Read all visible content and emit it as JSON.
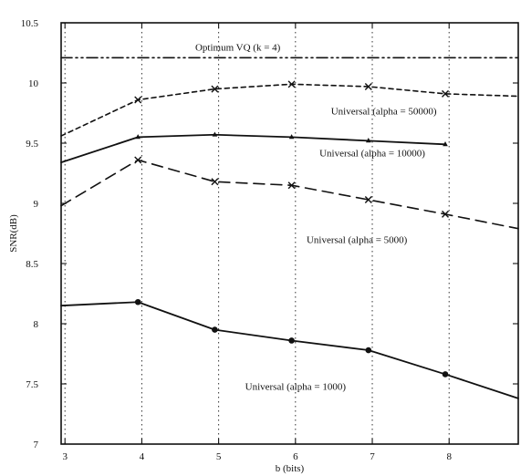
{
  "chart_data": {
    "type": "line",
    "xlabel": "b (bits)",
    "ylabel": "SNR(dB)",
    "xlim": [
      2.95,
      8.9
    ],
    "ylim": [
      7,
      10.5
    ],
    "xticks": [
      3,
      4,
      5,
      6,
      7,
      8
    ],
    "yticks": [
      7,
      7.5,
      8,
      8.5,
      9,
      9.5,
      10,
      10.5
    ],
    "ytick_labels": [
      "7",
      "7.5",
      "8",
      "8.5",
      "9",
      "9.5",
      "10",
      "10.5"
    ],
    "grid": {
      "vertical": true,
      "style": "dotted"
    },
    "series": [
      {
        "name": "Optimum VQ (k = 4)",
        "label": "Optimum VQ (k = 4)",
        "style": "dash-dot-dot",
        "marker": "none",
        "x": [
          2.95,
          8.9
        ],
        "y": [
          10.21,
          10.21
        ],
        "label_x": 5.25,
        "label_y": 10.27
      },
      {
        "name": "Universal (alpha = 50000)",
        "label": "Universal (alpha = 50000)",
        "style": "dashed",
        "marker": "x",
        "x": [
          2.95,
          3.95,
          4.95,
          5.95,
          6.95,
          7.95,
          8.9
        ],
        "y": [
          9.56,
          9.86,
          9.95,
          9.99,
          9.97,
          9.91,
          9.89
        ],
        "label_x": 7.15,
        "label_y": 9.74
      },
      {
        "name": "Universal (alpha = 10000)",
        "label": "Universal (alpha = 10000)",
        "style": "solid",
        "marker": "triangle",
        "x": [
          2.95,
          3.95,
          4.95,
          5.95,
          6.95,
          7.95
        ],
        "y": [
          9.34,
          9.55,
          9.57,
          9.55,
          9.52,
          9.49
        ],
        "label_x": 7.0,
        "label_y": 9.39
      },
      {
        "name": "Universal (alpha = 5000)",
        "label": "Universal (alpha = 5000)",
        "style": "long-dash",
        "marker": "x",
        "x": [
          2.95,
          3.95,
          4.95,
          5.95,
          6.95,
          7.95,
          8.9
        ],
        "y": [
          8.98,
          9.36,
          9.18,
          9.15,
          9.03,
          8.91,
          8.79
        ],
        "label_x": 6.8,
        "label_y": 8.67
      },
      {
        "name": "Universal (alpha = 1000)",
        "label": "Universal (alpha = 1000)",
        "style": "solid",
        "marker": "dot",
        "x": [
          2.95,
          3.95,
          4.95,
          5.95,
          6.95,
          7.95,
          8.9
        ],
        "y": [
          8.15,
          8.18,
          7.95,
          7.86,
          7.78,
          7.58,
          7.38
        ],
        "label_x": 6.0,
        "label_y": 7.45
      }
    ]
  }
}
